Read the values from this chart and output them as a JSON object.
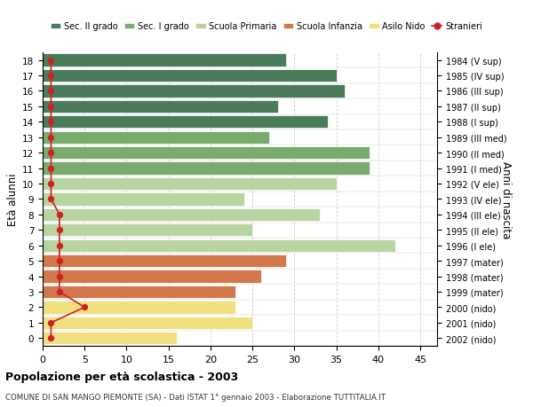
{
  "ages": [
    0,
    1,
    2,
    3,
    4,
    5,
    6,
    7,
    8,
    9,
    10,
    11,
    12,
    13,
    14,
    15,
    16,
    17,
    18
  ],
  "right_labels": [
    "2002 (nido)",
    "2001 (nido)",
    "2000 (nido)",
    "1999 (mater)",
    "1998 (mater)",
    "1997 (mater)",
    "1996 (I ele)",
    "1995 (II ele)",
    "1994 (III ele)",
    "1993 (IV ele)",
    "1992 (V ele)",
    "1991 (I med)",
    "1990 (II med)",
    "1989 (III med)",
    "1988 (I sup)",
    "1987 (II sup)",
    "1986 (III sup)",
    "1985 (IV sup)",
    "1984 (V sup)"
  ],
  "bar_values": [
    16,
    25,
    23,
    23,
    26,
    29,
    42,
    25,
    33,
    24,
    35,
    39,
    39,
    27,
    34,
    28,
    36,
    35,
    29
  ],
  "bar_colors": [
    "#f0e080",
    "#f0e080",
    "#f0e080",
    "#d2784a",
    "#d2784a",
    "#d2784a",
    "#b8d4a0",
    "#b8d4a0",
    "#b8d4a0",
    "#b8d4a0",
    "#b8d4a0",
    "#7aab6e",
    "#7aab6e",
    "#7aab6e",
    "#4a7c59",
    "#4a7c59",
    "#4a7c59",
    "#4a7c59",
    "#4a7c59"
  ],
  "stranieri_values": [
    1,
    1,
    5,
    2,
    2,
    2,
    2,
    2,
    2,
    1,
    1,
    1,
    1,
    1,
    1,
    1,
    1,
    1,
    1
  ],
  "stranieri_color": "#cc2222",
  "legend_items": [
    {
      "label": "Sec. II grado",
      "color": "#4a7c59"
    },
    {
      "label": "Sec. I grado",
      "color": "#7aab6e"
    },
    {
      "label": "Scuola Primaria",
      "color": "#b8d4a0"
    },
    {
      "label": "Scuola Infanzia",
      "color": "#d2784a"
    },
    {
      "label": "Asilo Nido",
      "color": "#f0e080"
    },
    {
      "label": "Stranieri",
      "color": "#cc2222"
    }
  ],
  "ylabel_left": "Età alunni",
  "ylabel_right": "Anni di nascita",
  "xlim": [
    0,
    47
  ],
  "xticks": [
    0,
    5,
    10,
    15,
    20,
    25,
    30,
    35,
    40,
    45
  ],
  "title": "Popolazione per età scolastica - 2003",
  "subtitle": "COMUNE DI SAN MANGO PIEMONTE (SA) - Dati ISTAT 1° gennaio 2003 - Elaborazione TUTTITALIA.IT",
  "background_color": "#ffffff",
  "grid_color": "#cccccc",
  "bar_height": 0.82
}
